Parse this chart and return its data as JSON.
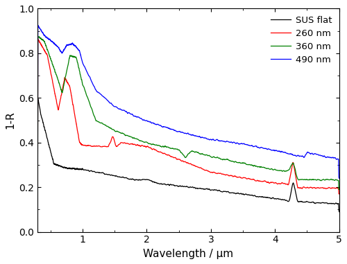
{
  "title": "",
  "xlabel": "Wavelength / μm",
  "ylabel": "1-R",
  "xlim": [
    0.3,
    5.0
  ],
  "ylim": [
    0.0,
    1.0
  ],
  "legend": [
    "SUS flat",
    "260 nm",
    "360 nm",
    "490 nm"
  ],
  "legend_colors": [
    "black",
    "red",
    "green",
    "blue"
  ],
  "background_color": "#ffffff",
  "linewidth": 0.9,
  "xticks": [
    1,
    2,
    3,
    4,
    5
  ],
  "yticks": [
    0.0,
    0.2,
    0.4,
    0.6,
    0.8,
    1.0
  ]
}
